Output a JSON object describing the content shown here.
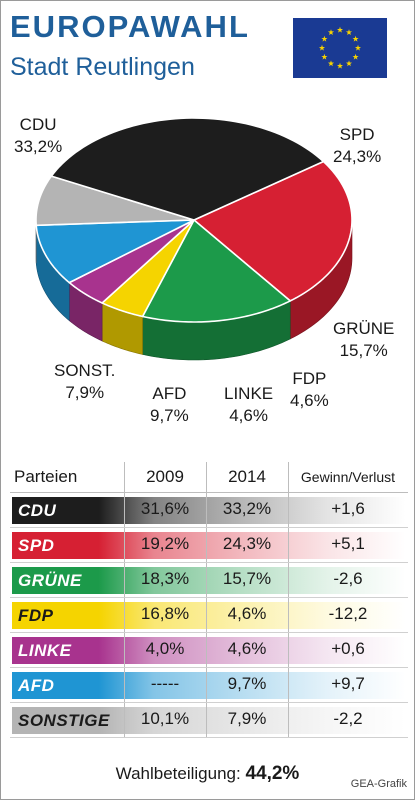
{
  "header": {
    "title": "EUROPAWAHL",
    "subtitle": "Stadt Reutlingen"
  },
  "colors": {
    "title_blue": "#1f5f9a",
    "eu_flag_blue": "#1a3a93",
    "eu_star_yellow": "#f6d200",
    "cdu": "#1d1d1d",
    "spd": "#d62033",
    "gruene": "#1c9a4a",
    "fdp": "#f5d400",
    "linke": "#a8338e",
    "afd": "#1f95d3",
    "sonst": "#b4b4b4"
  },
  "chart_data": [
    {
      "type": "pie",
      "title": "",
      "start_angle_deg": -35,
      "slices": [
        {
          "label": "SPD",
          "value": "24,3%",
          "num": 24.3,
          "color_key": "spd"
        },
        {
          "label": "GRÜNE",
          "value": "15,7%",
          "num": 15.7,
          "color_key": "gruene"
        },
        {
          "label": "FDP",
          "value": "4,6%",
          "num": 4.6,
          "color_key": "fdp"
        },
        {
          "label": "LINKE",
          "value": "4,6%",
          "num": 4.6,
          "color_key": "linke"
        },
        {
          "label": "AFD",
          "value": "9,7%",
          "num": 9.7,
          "color_key": "afd"
        },
        {
          "label": "SONST.",
          "value": "7,9%",
          "num": 7.9,
          "color_key": "sonst"
        },
        {
          "label": "CDU",
          "value": "33,2%",
          "num": 33.2,
          "color_key": "cdu"
        }
      ]
    },
    {
      "type": "table",
      "columns": [
        "Parteien",
        "2009",
        "2014",
        "Gewinn/Verlust"
      ],
      "rows": [
        {
          "party": "CDU",
          "v2009": "31,6%",
          "v2014": "33,2%",
          "change": "+1,6",
          "color_key": "cdu",
          "dark_text": false
        },
        {
          "party": "SPD",
          "v2009": "19,2%",
          "v2014": "24,3%",
          "change": "+5,1",
          "color_key": "spd",
          "dark_text": false
        },
        {
          "party": "GRÜNE",
          "v2009": "18,3%",
          "v2014": "15,7%",
          "change": "-2,6",
          "color_key": "gruene",
          "dark_text": false
        },
        {
          "party": "FDP",
          "v2009": "16,8%",
          "v2014": "4,6%",
          "change": "-12,2",
          "color_key": "fdp",
          "dark_text": true
        },
        {
          "party": "LINKE",
          "v2009": "4,0%",
          "v2014": "4,6%",
          "change": "+0,6",
          "color_key": "linke",
          "dark_text": false
        },
        {
          "party": "AFD",
          "v2009": "-----",
          "v2014": "9,7%",
          "change": "+9,7",
          "color_key": "afd",
          "dark_text": false
        },
        {
          "party": "SONSTIGE",
          "v2009": "10,1%",
          "v2014": "7,9%",
          "change": "-2,2",
          "color_key": "sonst",
          "dark_text": true
        }
      ]
    }
  ],
  "footer": {
    "turnout_label": "Wahlbeteiligung:",
    "turnout_value": "44,2%",
    "credit": "GEA-Grafik"
  }
}
